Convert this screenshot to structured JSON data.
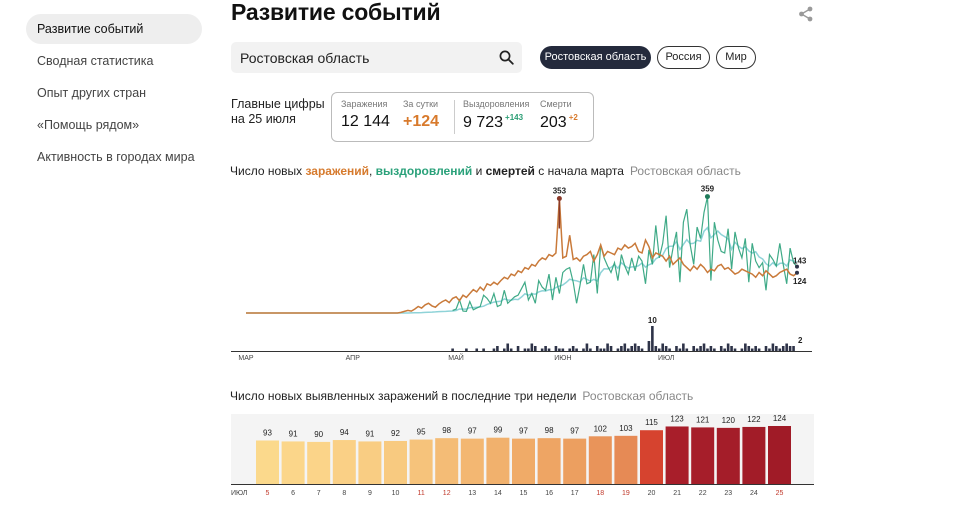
{
  "sidebar": {
    "items": [
      {
        "label": "Развитие событий",
        "active": true
      },
      {
        "label": "Сводная статистика",
        "active": false
      },
      {
        "label": "Опыт других стран",
        "active": false
      },
      {
        "label": "«Помощь рядом»",
        "active": false
      },
      {
        "label": "Активность в городах мира",
        "active": false
      }
    ]
  },
  "header": {
    "title": "Развитие событий",
    "share_icon": "share-icon"
  },
  "search": {
    "value": "Ростовская область",
    "icon": "search-icon"
  },
  "chips": [
    {
      "label": "Ростовская область",
      "active": true
    },
    {
      "label": "Россия",
      "active": false
    },
    {
      "label": "Мир",
      "active": false
    }
  ],
  "summary": {
    "label_line1": "Главные цифры",
    "label_line2": "на 25 июля",
    "infected_label": "Заражения",
    "infected_value": "12 144",
    "daily_label": "За сутки",
    "daily_value": "+124",
    "recovered_label": "Выздоровления",
    "recovered_value": "9 723",
    "recovered_delta": "+143",
    "deaths_label": "Смерти",
    "deaths_value": "203",
    "deaths_delta": "+2"
  },
  "chart1": {
    "title_prefix": "Число новых ",
    "title_infected": "заражений",
    "title_sep": ", ",
    "title_recovered": "выздоровлений",
    "title_and": " и ",
    "title_deaths": "смертей",
    "title_suffix": " с начала марта",
    "title_region": "Ростовская область"
  },
  "chart2": {
    "title_text": "Число новых выявленных заражений в последние три недели",
    "title_region": "Ростовская область"
  },
  "colors": {
    "infected": "#c97a3a",
    "recovered": "#2aa17a",
    "recovered_avg": "#8fd3d8",
    "infected_peak": "#8a3a2a",
    "deaths": "#2e3348",
    "weekend_text": "#c0392b"
  },
  "chart_data": [
    {
      "type": "line",
      "x_axis_labels": [
        "МАР",
        "АПР",
        "МАЙ",
        "ИЮН",
        "ИЮЛ"
      ],
      "series": [
        {
          "values": [
            0,
            0,
            0,
            0,
            0,
            0,
            0,
            0,
            0,
            0,
            0,
            0,
            0,
            0,
            0,
            0,
            0,
            0,
            0,
            0,
            0,
            0,
            0,
            0,
            0,
            0,
            0,
            0,
            0,
            0,
            0,
            0,
            0,
            0,
            0,
            0,
            0,
            0,
            0,
            0,
            0,
            0,
            0,
            0,
            0,
            2,
            5,
            8,
            6,
            12,
            20,
            15,
            25,
            30,
            22,
            18,
            28,
            35,
            40,
            32,
            45,
            50,
            38,
            55,
            48,
            60,
            72,
            65,
            80,
            70,
            90,
            85,
            95,
            88,
            100,
            110,
            105,
            120,
            115,
            130,
            125,
            140,
            135,
            150,
            145,
            160,
            170,
            165,
            180,
            175,
            185,
            353,
            170,
            175,
            240,
            165,
            170,
            160,
            175,
            180,
            190,
            160,
            180,
            210,
            175,
            190,
            185,
            180,
            200,
            195,
            210,
            200,
            205,
            215,
            190,
            185,
            225,
            205,
            170,
            185,
            180,
            175,
            160,
            175,
            150,
            160,
            170,
            150,
            140,
            130,
            145,
            135,
            150,
            140,
            125,
            135,
            130,
            145,
            150,
            135,
            140,
            130,
            120,
            125,
            135,
            130,
            125,
            120,
            110,
            125,
            115,
            130,
            120,
            110,
            115,
            125,
            130,
            135,
            120,
            115,
            124
          ]
        },
        {
          "values": [
            0,
            0,
            0,
            0,
            0,
            0,
            0,
            0,
            0,
            0,
            0,
            0,
            0,
            0,
            0,
            0,
            0,
            0,
            0,
            0,
            0,
            0,
            0,
            0,
            0,
            0,
            0,
            0,
            0,
            0,
            0,
            0,
            0,
            0,
            0,
            0,
            0,
            0,
            0,
            0,
            0,
            0,
            0,
            0,
            0,
            0,
            1,
            0,
            2,
            1,
            3,
            2,
            5,
            4,
            3,
            6,
            8,
            5,
            4,
            10,
            8,
            12,
            40,
            6,
            5,
            35,
            10,
            15,
            20,
            55,
            45,
            30,
            60,
            20,
            25,
            70,
            30,
            40,
            50,
            55,
            75,
            95,
            40,
            60,
            30,
            100,
            80,
            70,
            120,
            40,
            110,
            60,
            125,
            135,
            140,
            95,
            30,
            85,
            150,
            90,
            95,
            180,
            60,
            210,
            170,
            145,
            125,
            155,
            100,
            180,
            145,
            120,
            170,
            130,
            175,
            160,
            90,
            195,
            150,
            270,
            170,
            215,
            300,
            140,
            200,
            250,
            95,
            280,
            320,
            210,
            150,
            265,
            230,
            310,
            359,
            100,
            280,
            225,
            190,
            185,
            260,
            135,
            250,
            200,
            170,
            230,
            95,
            215,
            160,
            140,
            155,
            70,
            180,
            165,
            145,
            215,
            150,
            90,
            200,
            155,
            143
          ]
        },
        {
          "values": [
            0,
            0,
            0,
            0,
            0,
            0,
            0,
            0,
            0,
            0,
            0,
            0,
            0,
            0,
            0,
            0,
            0,
            0,
            0,
            0,
            0,
            0,
            0,
            0,
            0,
            0,
            0,
            0,
            0,
            0,
            0,
            0,
            0,
            0,
            0,
            0,
            0,
            0,
            0,
            0,
            0,
            0,
            0,
            0,
            0,
            0,
            0,
            0,
            0,
            0,
            0,
            0,
            0,
            0,
            0,
            0,
            0,
            0,
            0,
            0,
            1,
            0,
            0,
            0,
            1,
            0,
            0,
            1,
            0,
            1,
            0,
            0,
            1,
            2,
            0,
            1,
            3,
            1,
            0,
            2,
            0,
            1,
            1,
            3,
            2,
            0,
            1,
            2,
            1,
            0,
            2,
            1,
            1,
            0,
            1,
            2,
            1,
            0,
            1,
            3,
            1,
            0,
            2,
            1,
            1,
            3,
            2,
            0,
            1,
            2,
            3,
            1,
            2,
            3,
            2,
            1,
            0,
            4,
            10,
            2,
            1,
            3,
            2,
            1,
            0,
            2,
            1,
            3,
            1,
            0,
            2,
            1,
            2,
            3,
            1,
            2,
            1,
            0,
            2,
            1,
            3,
            2,
            1,
            0,
            1,
            3,
            2,
            1,
            2,
            1,
            0,
            2,
            1,
            3,
            2,
            1,
            2,
            3,
            2,
            2
          ]
        }
      ],
      "annotations": [
        "353",
        "359",
        "143",
        "124",
        "10",
        "2"
      ]
    },
    {
      "type": "bar",
      "month_label": "ИЮЛ",
      "categories": [
        "5",
        "6",
        "7",
        "8",
        "9",
        "10",
        "11",
        "12",
        "13",
        "14",
        "15",
        "16",
        "17",
        "18",
        "19",
        "20",
        "21",
        "22",
        "23",
        "24",
        "25"
      ],
      "values": [
        93,
        91,
        90,
        94,
        91,
        92,
        95,
        98,
        97,
        99,
        97,
        98,
        97,
        102,
        103,
        115,
        123,
        121,
        120,
        122,
        124
      ],
      "weekend_categories": [
        "5",
        "11",
        "12",
        "18",
        "19",
        "25"
      ],
      "bar_colors": [
        "#fbd98c",
        "#fbd68a",
        "#fbd489",
        "#fad086",
        "#f9cd83",
        "#f8ca80",
        "#f6c37b",
        "#f4bc76",
        "#f3b772",
        "#f1b16d",
        "#f0ab68",
        "#eea564",
        "#ec9f60",
        "#e9945a",
        "#e68a55",
        "#d6432f",
        "#a81e2a",
        "#a61e2a",
        "#a41d29",
        "#a21c28",
        "#a01b27"
      ]
    }
  ]
}
